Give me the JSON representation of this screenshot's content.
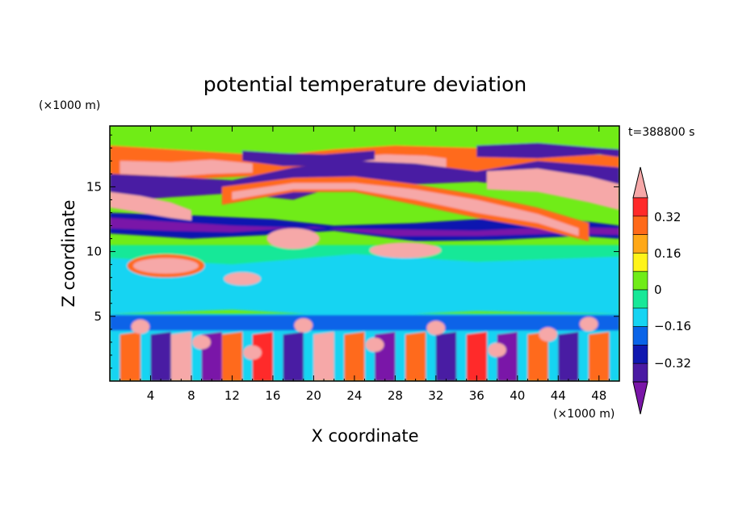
{
  "chart_data": {
    "type": "heatmap",
    "title": "potential temperature deviation",
    "xlabel": "X coordinate",
    "ylabel": "Z coordinate",
    "x_unit": "(×1000 m)",
    "y_unit": "(×1000 m)",
    "time_label": "t=388800 s",
    "x_ticks": [
      "4",
      "8",
      "12",
      "16",
      "20",
      "24",
      "28",
      "32",
      "36",
      "40",
      "44",
      "48"
    ],
    "y_ticks": [
      "5",
      "10",
      "15"
    ],
    "xlim": [
      0,
      50
    ],
    "ylim": [
      0,
      19.7
    ],
    "colorbar_labels": [
      "0.32",
      "0.16",
      "0",
      "−0.16",
      "−0.32"
    ],
    "colorbar_levels": [
      -0.4,
      -0.32,
      -0.24,
      -0.16,
      -0.08,
      0,
      0.08,
      0.16,
      0.24,
      0.32,
      0.4
    ],
    "colorbar_colors": [
      "#7a16a8",
      "#4a1aa3",
      "#1018b0",
      "#0a64e8",
      "#16d4f2",
      "#18e898",
      "#70ec18",
      "#fff41a",
      "#ffa818",
      "#ff6a1a",
      "#ff2a2a",
      "#f6a8a8"
    ],
    "regions": [
      {
        "level": "high",
        "description": "pink/red upper bands near z 13-17"
      },
      {
        "level": "low",
        "description": "purple/blue bands near z 11-16"
      },
      {
        "level": "mixed",
        "description": "turbulent low layer z 0-5"
      }
    ]
  }
}
